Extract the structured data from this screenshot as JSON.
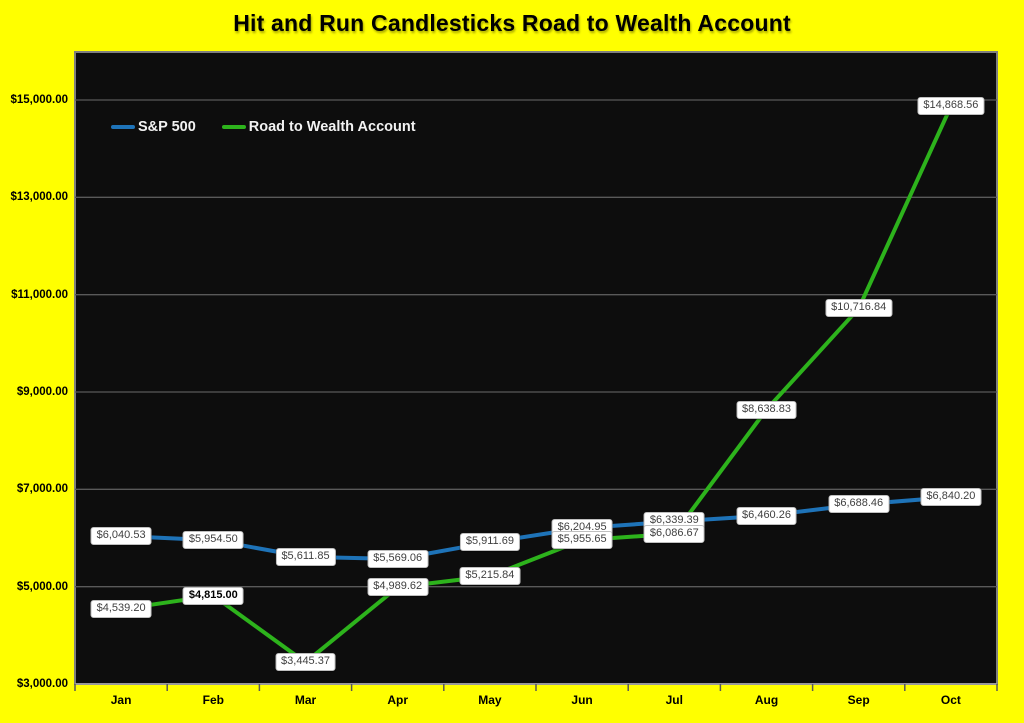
{
  "title": "Hit and Run Candlesticks Road to Wealth Account",
  "legend": {
    "items": [
      {
        "label": "S&P 500",
        "color": "#1e73b8"
      },
      {
        "label": "Road to Wealth Account",
        "color": "#2db31c"
      }
    ]
  },
  "x_axis": {
    "labels": [
      "Jan",
      "Feb",
      "Mar",
      "Apr",
      "May",
      "Jun",
      "Jul",
      "Aug",
      "Sep",
      "Oct"
    ]
  },
  "y_axis": {
    "labels": [
      "$3,000.00",
      "$5,000.00",
      "$7,000.00",
      "$9,000.00",
      "$11,000.00",
      "$13,000.00",
      "$15,000.00"
    ]
  },
  "chart_data": {
    "type": "line",
    "title": "Hit and Run Candlesticks Road to Wealth Account",
    "categories": [
      "Jan",
      "Feb",
      "Mar",
      "Apr",
      "May",
      "Jun",
      "Jul",
      "Aug",
      "Sep",
      "Oct"
    ],
    "series": [
      {
        "name": "S&P 500",
        "color": "#1e73b8",
        "values": [
          6040.53,
          5954.5,
          5611.85,
          5569.06,
          5911.69,
          6204.95,
          6339.39,
          6460.26,
          6688.46,
          6840.2
        ],
        "labels": [
          "$6,040.53",
          "$5,954.50",
          "$5,611.85",
          "$5,569.06",
          "$5,911.69",
          "$6,204.95",
          "$6,339.39",
          "$6,460.26",
          "$6,688.46",
          "$6,840.20"
        ],
        "label_bold": [
          false,
          false,
          false,
          false,
          false,
          false,
          false,
          false,
          false,
          false
        ]
      },
      {
        "name": "Road to Wealth Account",
        "color": "#2db31c",
        "values": [
          4539.2,
          4815.0,
          3445.37,
          4989.62,
          5215.84,
          5955.65,
          6086.67,
          8638.83,
          10716.84,
          14868.56
        ],
        "labels": [
          "$4,539.20",
          "$4,815.00",
          "$3,445.37",
          "$4,989.62",
          "$5,215.84",
          "$5,955.65",
          "$6,086.67",
          "$8,638.83",
          "$10,716.84",
          "$14,868.56"
        ],
        "label_bold": [
          false,
          true,
          false,
          false,
          false,
          false,
          false,
          false,
          false,
          false
        ]
      }
    ],
    "ylim": [
      3000,
      15000
    ],
    "ytick_interval": 2000,
    "ytick_labels": [
      "$3,000.00",
      "$5,000.00",
      "$7,000.00",
      "$9,000.00",
      "$11,000.00",
      "$13,000.00",
      "$15,000.00"
    ],
    "grid": true,
    "legend_position": "top-left",
    "data_label_position": "center",
    "colors": {
      "page_bg": "#ffff00",
      "plot_bg": "#0d0d0d",
      "plot_border": "#7f7f7f",
      "gridline": "#595959",
      "axis_line": "#9a9a9a",
      "data_label_bg": "#ffffff",
      "data_label_border": "#bfbfbf",
      "data_label_text": "#3f3f3f"
    }
  }
}
